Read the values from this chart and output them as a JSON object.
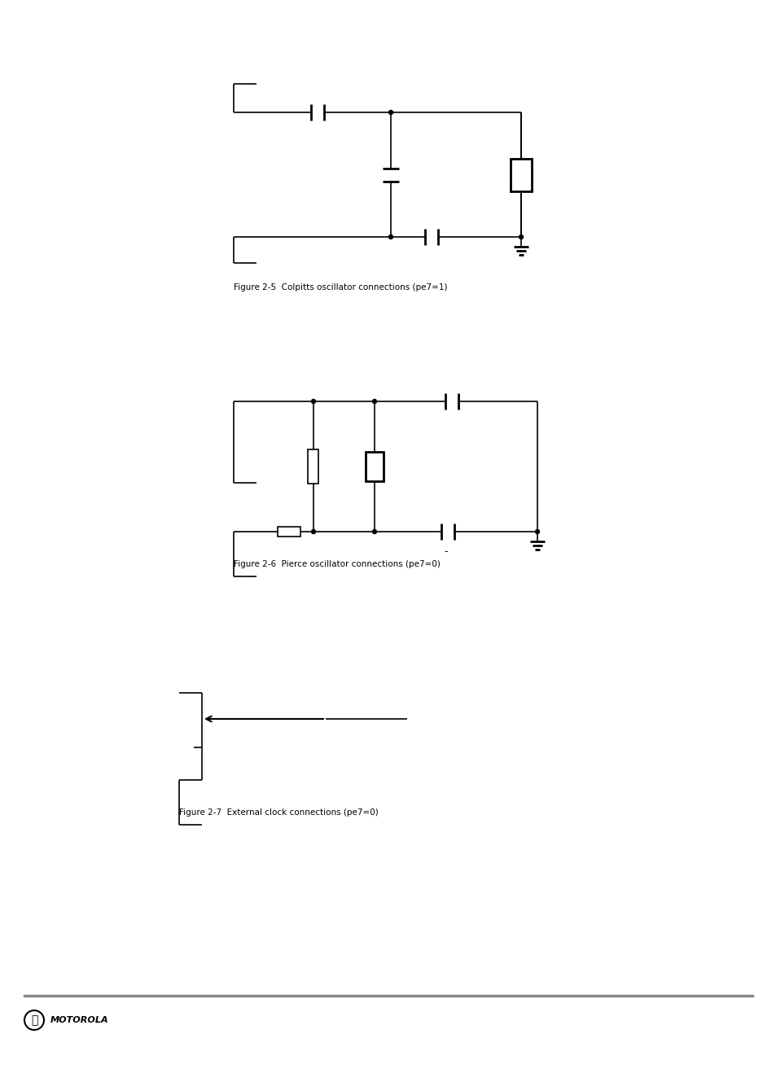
{
  "bg_color": "#ffffff",
  "line_color": "#000000",
  "lw": 1.2,
  "lw_thick": 2.0,
  "fig_width": 9.54,
  "fig_height": 13.13,
  "dpi": 100,
  "d1_label": "Figure 2-5  Colpitts oscillator connections (pe7=1)",
  "d2_label": "Figure 2-6  Pierce oscillator connections (pe7=0)",
  "d3_label": "Figure 2-7  External clock connections (pe7=0)",
  "motorola_text": "MOTOROLA",
  "footer_color": "#888888"
}
